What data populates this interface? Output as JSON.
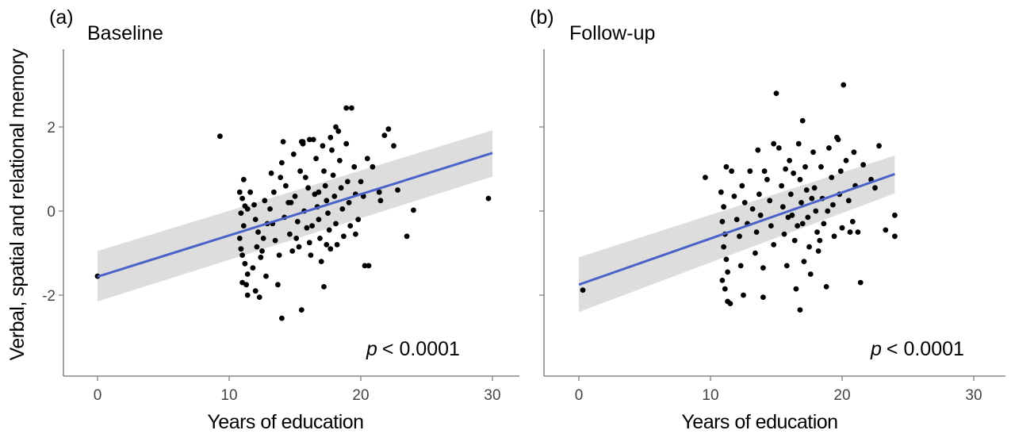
{
  "figure": {
    "ylabel": "Verbal, spatial and relational memory"
  },
  "chart_data": [
    {
      "type": "scatter",
      "panel_label": "(a)",
      "title": "Baseline",
      "xlabel": "Years of education",
      "xlim": [
        -2.5,
        31
      ],
      "ylim": [
        -3.8,
        3.9
      ],
      "xticks": [
        0,
        10,
        20,
        30
      ],
      "yticks": [
        -2,
        0,
        2
      ],
      "annotation": "< 0.0001",
      "annotation_symbol": "p",
      "grid": false,
      "fit": {
        "x": [
          0,
          30
        ],
        "y": [
          -1.56,
          1.38
        ],
        "ci_lower": [
          -2.15,
          0.82
        ],
        "ci_upper": [
          -0.95,
          1.92
        ],
        "color": "#4b62c8"
      },
      "points": [
        [
          0,
          -1.55
        ],
        [
          9.3,
          1.78
        ],
        [
          10.8,
          0.45
        ],
        [
          11,
          0.3
        ],
        [
          11.2,
          0.12
        ],
        [
          10.9,
          -0.05
        ],
        [
          11.4,
          0.05
        ],
        [
          11.1,
          -0.35
        ],
        [
          10.8,
          -0.65
        ],
        [
          10.9,
          -0.9
        ],
        [
          11,
          -1.05
        ],
        [
          11.2,
          -1.25
        ],
        [
          11.4,
          -1.5
        ],
        [
          11,
          -1.7
        ],
        [
          11.3,
          -1.75
        ],
        [
          11.4,
          -2.0
        ],
        [
          11.1,
          0.75
        ],
        [
          11.6,
          0.45
        ],
        [
          11.9,
          0.15
        ],
        [
          12,
          -0.2
        ],
        [
          12.2,
          -0.5
        ],
        [
          12.1,
          -0.85
        ],
        [
          12.4,
          -1.1
        ],
        [
          11.8,
          -1.35
        ],
        [
          12.7,
          0.25
        ],
        [
          12.6,
          -0.65
        ],
        [
          12,
          -1.9
        ],
        [
          12.3,
          -2.05
        ],
        [
          12.8,
          -1.55
        ],
        [
          13.2,
          0.9
        ],
        [
          13.4,
          0.45
        ],
        [
          13.1,
          0.05
        ],
        [
          13.3,
          -0.3
        ],
        [
          13.5,
          -0.7
        ],
        [
          13.7,
          -1.75
        ],
        [
          13.8,
          -1.05
        ],
        [
          14,
          1.15
        ],
        [
          14.3,
          0.6
        ],
        [
          14.1,
          1.65
        ],
        [
          14.5,
          0.2
        ],
        [
          14.2,
          -0.15
        ],
        [
          14.6,
          -0.55
        ],
        [
          14.8,
          -0.95
        ],
        [
          14,
          -2.55
        ],
        [
          14.9,
          1.35
        ],
        [
          15,
          0.35
        ],
        [
          15.2,
          -0.25
        ],
        [
          15.1,
          -0.65
        ],
        [
          15.3,
          -0.85
        ],
        [
          15.5,
          1.65
        ],
        [
          15.6,
          1.6
        ],
        [
          15.8,
          0.8
        ],
        [
          16,
          0.55
        ],
        [
          15.7,
          0.0
        ],
        [
          15.9,
          -0.4
        ],
        [
          16.1,
          -0.75
        ],
        [
          16.2,
          -1.05
        ],
        [
          15.5,
          -2.35
        ],
        [
          16.4,
          1.7
        ],
        [
          16.6,
          1.25
        ],
        [
          16.5,
          0.4
        ],
        [
          16.7,
          0.1
        ],
        [
          16.8,
          -0.2
        ],
        [
          16.9,
          -0.65
        ],
        [
          17,
          -1.2
        ],
        [
          17.1,
          1.55
        ],
        [
          17.2,
          0.95
        ],
        [
          17.3,
          0.6
        ],
        [
          17.4,
          0.25
        ],
        [
          17.5,
          -0.05
        ],
        [
          17.6,
          -0.45
        ],
        [
          17.7,
          -0.9
        ],
        [
          17.2,
          -1.8
        ],
        [
          17.8,
          1.45
        ],
        [
          17.9,
          0.85
        ],
        [
          18,
          0.35
        ],
        [
          18.1,
          -0.3
        ],
        [
          18.2,
          -0.8
        ],
        [
          18.3,
          1.9
        ],
        [
          18.4,
          1.2
        ],
        [
          18.5,
          0.55
        ],
        [
          18.6,
          0.05
        ],
        [
          18.7,
          -0.6
        ],
        [
          18.9,
          1.6
        ],
        [
          19,
          0.7
        ],
        [
          19.1,
          0.2
        ],
        [
          19.2,
          -0.35
        ],
        [
          18.9,
          2.45
        ],
        [
          19.3,
          2.45
        ],
        [
          19.5,
          1.05
        ],
        [
          19.6,
          0.4
        ],
        [
          19.8,
          -0.2
        ],
        [
          20,
          0.7
        ],
        [
          20.2,
          0.35
        ],
        [
          20.5,
          1.25
        ],
        [
          20.6,
          -1.3
        ],
        [
          20.9,
          1.05
        ],
        [
          21.4,
          0.45
        ],
        [
          21.5,
          0.25
        ],
        [
          21.8,
          1.8
        ],
        [
          22.1,
          1.95
        ],
        [
          22.5,
          1.55
        ],
        [
          22.8,
          0.5
        ],
        [
          23.5,
          -0.6
        ],
        [
          24,
          0.02
        ],
        [
          29.7,
          0.3
        ],
        [
          15.6,
          1.65
        ],
        [
          16.1,
          1.7
        ],
        [
          17.7,
          1.75
        ],
        [
          18.1,
          2.0
        ],
        [
          12.5,
          -0.95
        ],
        [
          13.9,
          0.8
        ],
        [
          15.4,
          0.95
        ],
        [
          16.3,
          -0.35
        ],
        [
          17.4,
          -0.8
        ],
        [
          19.6,
          -0.55
        ],
        [
          20.3,
          -1.3
        ],
        [
          12.9,
          -0.3
        ],
        [
          14.7,
          0.2
        ],
        [
          16.8,
          0.45
        ]
      ]
    },
    {
      "type": "scatter",
      "panel_label": "(b)",
      "title": "Follow-up",
      "xlabel": "Years of education",
      "xlim": [
        -2.5,
        31
      ],
      "ylim": [
        -3.8,
        3.9
      ],
      "xticks": [
        0,
        10,
        20,
        30
      ],
      "yticks": [
        -2,
        0,
        2
      ],
      "annotation": "< 0.0001",
      "annotation_symbol": "p",
      "grid": false,
      "fit": {
        "x": [
          0,
          24
        ],
        "y": [
          -1.75,
          0.88
        ],
        "ci_lower": [
          -2.4,
          0.42
        ],
        "ci_upper": [
          -1.1,
          1.32
        ],
        "color": "#4b62c8"
      },
      "points": [
        [
          0.3,
          -1.88
        ],
        [
          9.6,
          0.8
        ],
        [
          10.8,
          0.45
        ],
        [
          11,
          0.1
        ],
        [
          10.9,
          -0.25
        ],
        [
          11.1,
          -0.55
        ],
        [
          11,
          -0.85
        ],
        [
          11.2,
          -1.15
        ],
        [
          11.3,
          -1.45
        ],
        [
          10.9,
          -1.65
        ],
        [
          11.1,
          -1.85
        ],
        [
          11.3,
          -2.15
        ],
        [
          11.5,
          -2.2
        ],
        [
          11.2,
          1.05
        ],
        [
          11.6,
          0.95
        ],
        [
          11.8,
          0.35
        ],
        [
          12,
          -0.2
        ],
        [
          12.2,
          -0.6
        ],
        [
          12.3,
          -1.3
        ],
        [
          12.5,
          -2.0
        ],
        [
          12.4,
          0.6
        ],
        [
          12.8,
          -0.3
        ],
        [
          13,
          0.95
        ],
        [
          13.2,
          0.05
        ],
        [
          13.4,
          -1.0
        ],
        [
          13.6,
          1.45
        ],
        [
          13.7,
          0.4
        ],
        [
          13.8,
          -0.1
        ],
        [
          14,
          -1.35
        ],
        [
          14,
          -2.05
        ],
        [
          14.3,
          0.75
        ],
        [
          14.5,
          0.25
        ],
        [
          14.6,
          -0.35
        ],
        [
          14.8,
          -0.8
        ],
        [
          15,
          2.8
        ],
        [
          15.2,
          1.5
        ],
        [
          15.4,
          0.6
        ],
        [
          15.5,
          0.1
        ],
        [
          15.6,
          -0.55
        ],
        [
          15.8,
          -1.3
        ],
        [
          16,
          1.2
        ],
        [
          16.1,
          0.4
        ],
        [
          16.2,
          -0.1
        ],
        [
          16.4,
          -0.7
        ],
        [
          16.5,
          -1.85
        ],
        [
          16.7,
          1.6
        ],
        [
          16.8,
          0.75
        ],
        [
          16.9,
          0.2
        ],
        [
          17,
          -0.3
        ],
        [
          17.1,
          -1.2
        ],
        [
          17,
          2.15
        ],
        [
          17.2,
          1.05
        ],
        [
          17.3,
          0.5
        ],
        [
          17.4,
          -0.15
        ],
        [
          17.5,
          -0.85
        ],
        [
          17.6,
          -1.5
        ],
        [
          16.8,
          -2.35
        ],
        [
          17.8,
          1.4
        ],
        [
          17.9,
          0.55
        ],
        [
          18,
          0.0
        ],
        [
          18.1,
          -0.5
        ],
        [
          18.2,
          -0.95
        ],
        [
          18.4,
          1.05
        ],
        [
          18.5,
          0.3
        ],
        [
          18.6,
          -0.3
        ],
        [
          18.8,
          -1.8
        ],
        [
          19,
          1.5
        ],
        [
          19.2,
          0.8
        ],
        [
          19.3,
          0.15
        ],
        [
          19.4,
          -0.6
        ],
        [
          19.6,
          1.75
        ],
        [
          19.7,
          1.7
        ],
        [
          19.8,
          0.4
        ],
        [
          20,
          -0.4
        ],
        [
          20.1,
          3.0
        ],
        [
          20.3,
          1.2
        ],
        [
          20.5,
          0.25
        ],
        [
          20.6,
          -0.5
        ],
        [
          20.9,
          1.4
        ],
        [
          21,
          0.6
        ],
        [
          21.2,
          -0.5
        ],
        [
          21.4,
          -1.7
        ],
        [
          21.6,
          1.1
        ],
        [
          22.2,
          0.75
        ],
        [
          22.5,
          0.55
        ],
        [
          22.8,
          1.55
        ],
        [
          23.3,
          -0.45
        ],
        [
          24,
          -0.1
        ],
        [
          24,
          -0.6
        ],
        [
          14.8,
          1.6
        ],
        [
          15.7,
          1.0
        ],
        [
          16.3,
          0.9
        ],
        [
          17.7,
          0.3
        ],
        [
          18.3,
          -0.7
        ],
        [
          12.6,
          0.2
        ],
        [
          13.5,
          -0.5
        ],
        [
          14.1,
          0.95
        ],
        [
          15.9,
          -0.15
        ],
        [
          18.9,
          0.0
        ],
        [
          20.8,
          -0.25
        ],
        [
          16.6,
          -0.35
        ],
        [
          19.9,
          0.95
        ]
      ]
    }
  ]
}
